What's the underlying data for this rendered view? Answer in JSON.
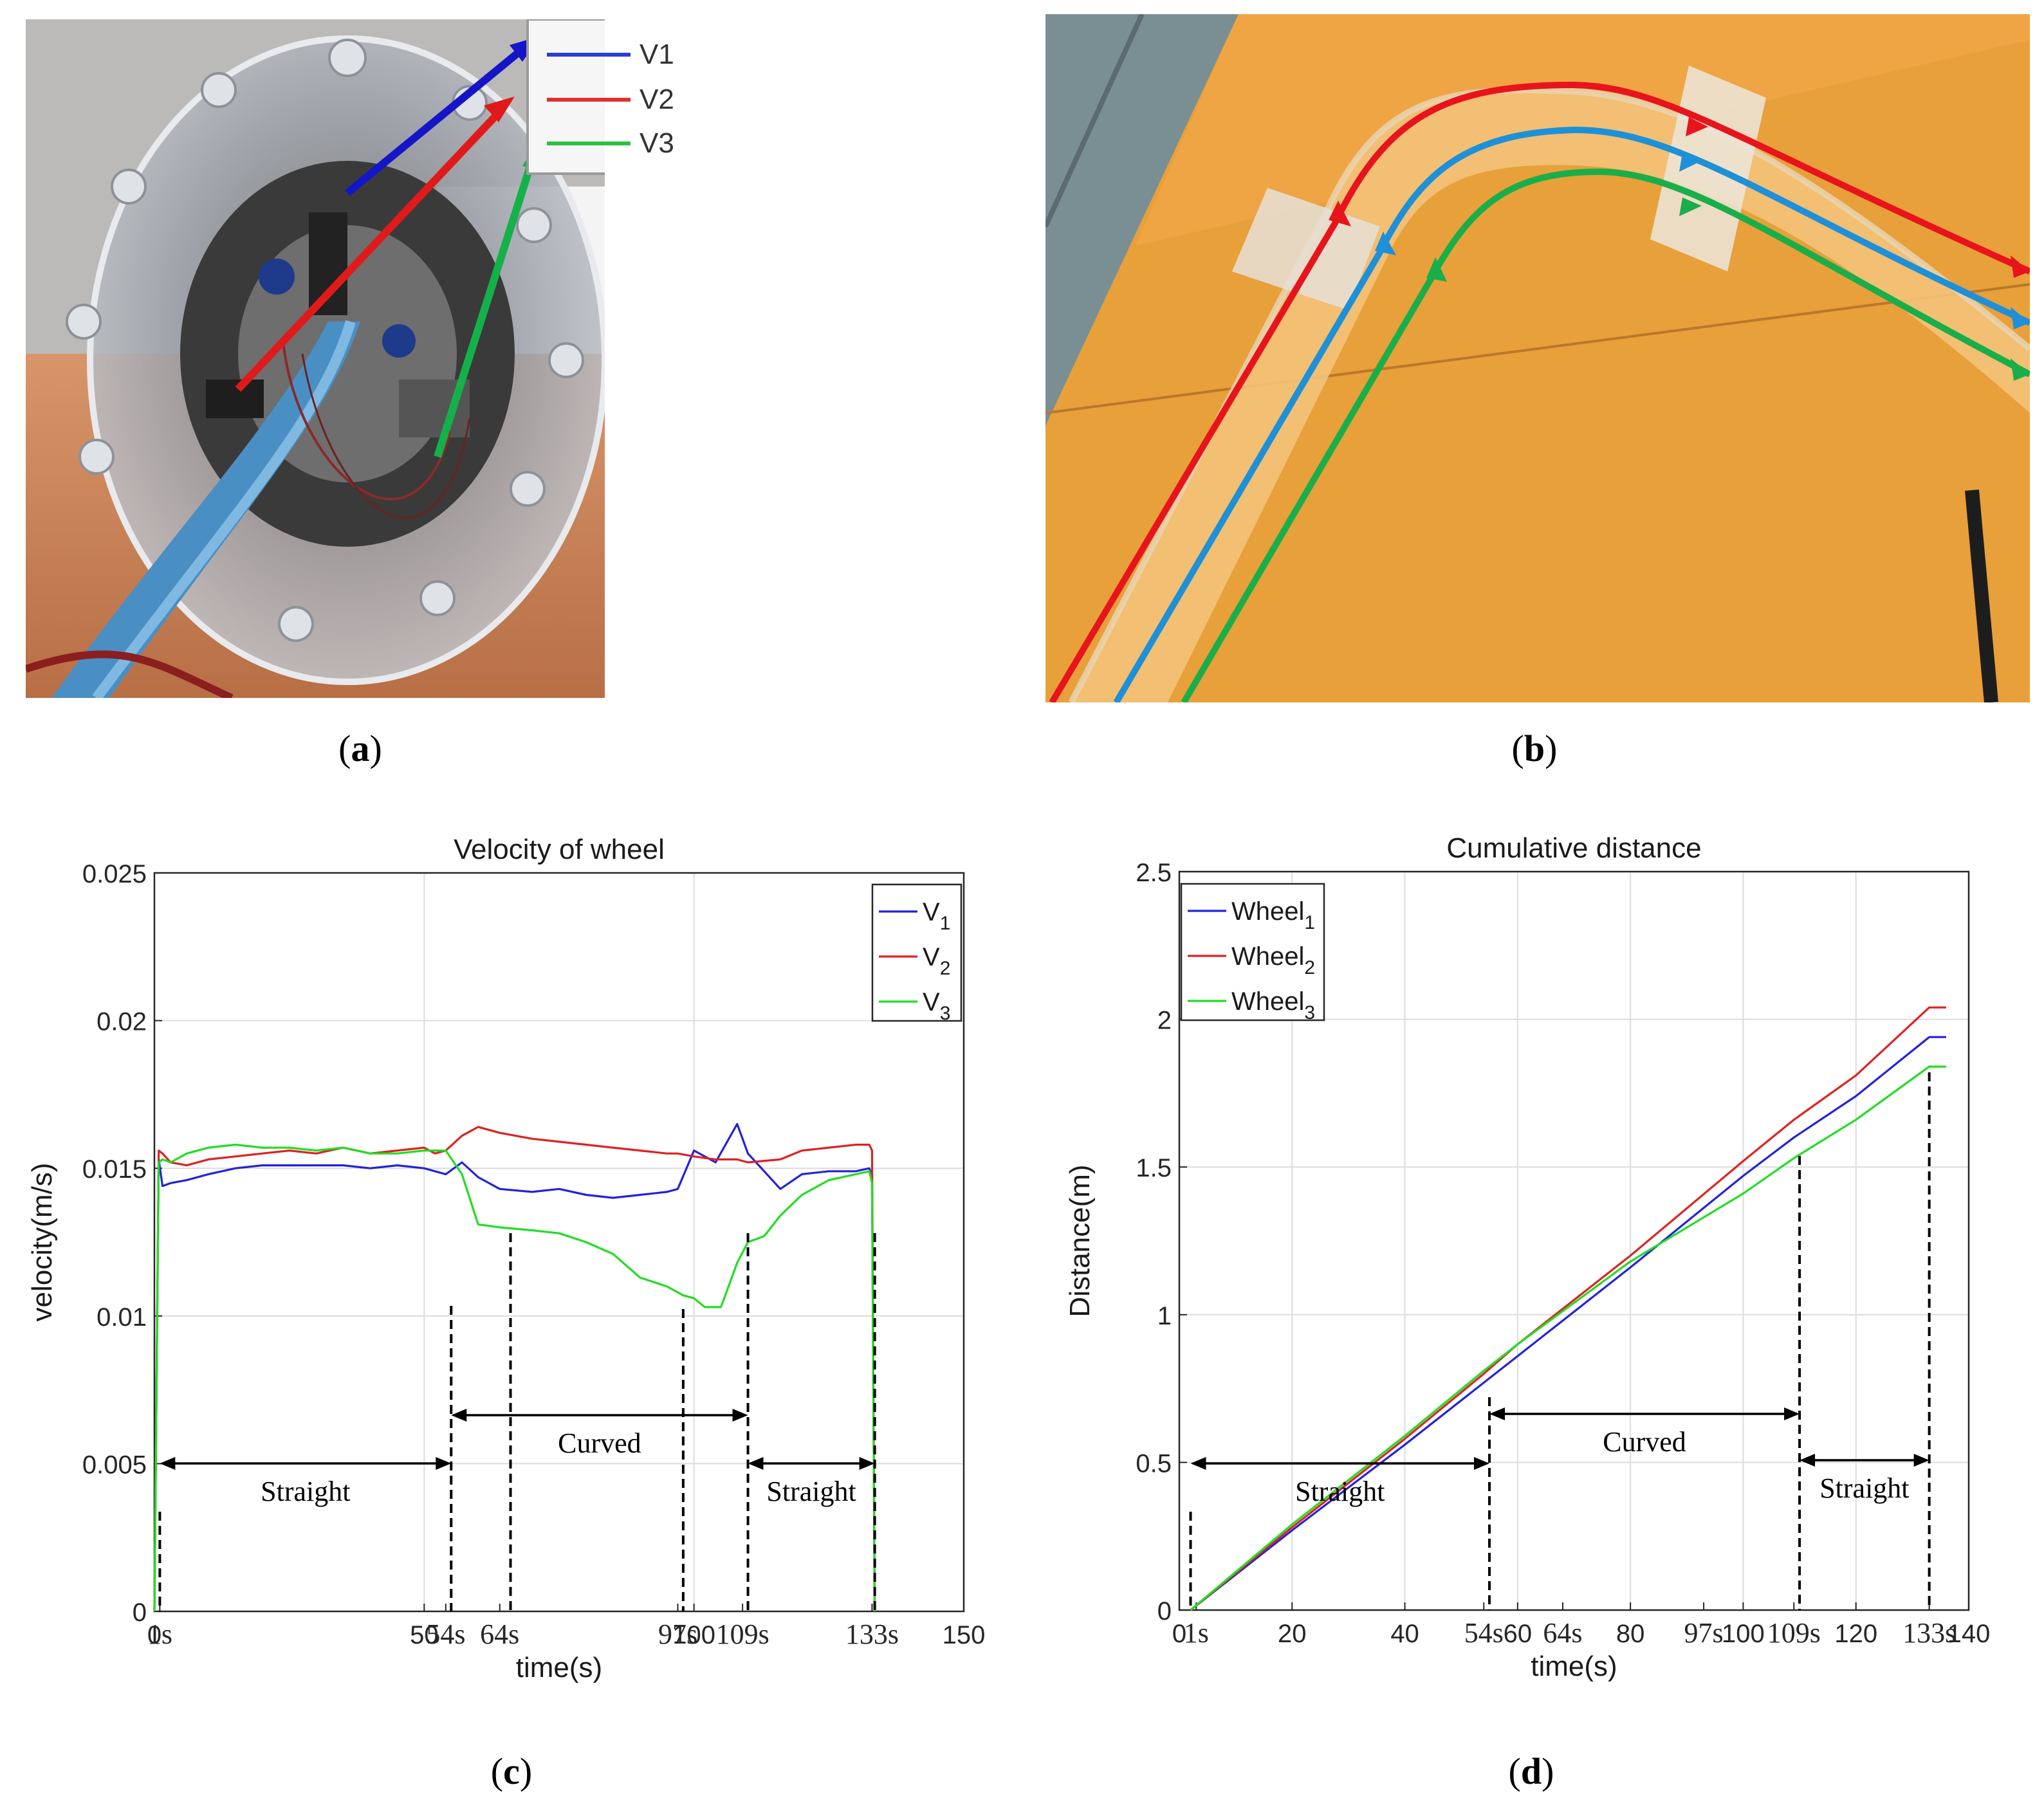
{
  "panels": {
    "a": {
      "caption_label": "a",
      "legend": [
        {
          "label": "V1",
          "color": "#2a3fd6"
        },
        {
          "label": "V2",
          "color": "#e03030"
        },
        {
          "label": "V3",
          "color": "#2ac040"
        }
      ]
    },
    "b": {
      "caption_label": "b"
    },
    "c": {
      "caption_label": "c"
    },
    "d": {
      "caption_label": "d"
    }
  },
  "chart_data": [
    {
      "type": "line",
      "title": "Velocity of wheel",
      "xlabel": "time(s)",
      "ylabel": "velocity(m/s)",
      "xlim": [
        0,
        150
      ],
      "ylim": [
        0,
        0.025
      ],
      "grid": true,
      "legend_position": "top-right",
      "yticks": [
        "0",
        "0.005",
        "0.01",
        "0.015",
        "0.02",
        "0.025"
      ],
      "xtick_labels": [
        {
          "x": 0,
          "label": "0"
        },
        {
          "x": 1,
          "label": "1s"
        },
        {
          "x": 50,
          "label": "50"
        },
        {
          "x": 54,
          "label": "54s"
        },
        {
          "x": 64,
          "label": "64s"
        },
        {
          "x": 97,
          "label": "97s"
        },
        {
          "x": 100,
          "label": "100"
        },
        {
          "x": 109,
          "label": "109s"
        },
        {
          "x": 133,
          "label": "133s"
        },
        {
          "x": 150,
          "label": "150"
        }
      ],
      "series": [
        {
          "name": "V",
          "subscript": "1",
          "color": "#2222dd",
          "x": [
            0,
            0.8,
            1.5,
            3,
            6,
            10,
            15,
            20,
            25,
            30,
            35,
            40,
            45,
            50,
            52,
            54,
            57,
            60,
            64,
            70,
            75,
            80,
            85,
            90,
            95,
            97,
            100,
            104,
            108,
            110,
            116,
            120,
            125,
            130,
            132.5,
            133,
            133.5
          ],
          "y": [
            0,
            0.0153,
            0.0144,
            0.0145,
            0.0146,
            0.0148,
            0.015,
            0.0151,
            0.0151,
            0.0151,
            0.0151,
            0.015,
            0.0151,
            0.015,
            0.0149,
            0.0148,
            0.0152,
            0.0147,
            0.0143,
            0.0142,
            0.0143,
            0.0141,
            0.014,
            0.0141,
            0.0142,
            0.0143,
            0.0156,
            0.0152,
            0.0165,
            0.0155,
            0.0143,
            0.0148,
            0.0149,
            0.0149,
            0.015,
            0.0147,
            0
          ]
        },
        {
          "name": "V",
          "subscript": "2",
          "color": "#dd2222",
          "x": [
            0,
            0.8,
            1.5,
            3,
            6,
            10,
            15,
            20,
            25,
            30,
            35,
            40,
            45,
            50,
            52,
            54,
            57,
            60,
            64,
            70,
            75,
            80,
            85,
            90,
            95,
            97,
            100,
            104,
            108,
            110,
            116,
            120,
            125,
            130,
            132.5,
            133,
            133.5
          ],
          "y": [
            0,
            0.0156,
            0.0155,
            0.0152,
            0.0151,
            0.0153,
            0.0154,
            0.0155,
            0.0156,
            0.0155,
            0.0157,
            0.0155,
            0.0156,
            0.0157,
            0.0155,
            0.0156,
            0.0161,
            0.0164,
            0.0162,
            0.016,
            0.0159,
            0.0158,
            0.0157,
            0.0156,
            0.0155,
            0.0155,
            0.0154,
            0.0153,
            0.0153,
            0.0152,
            0.0153,
            0.0156,
            0.0157,
            0.0158,
            0.0158,
            0.0156,
            0
          ]
        },
        {
          "name": "V",
          "subscript": "3",
          "color": "#22dd22",
          "x": [
            0,
            0.8,
            1.5,
            3,
            6,
            10,
            15,
            20,
            25,
            30,
            35,
            40,
            45,
            50,
            54,
            57,
            60,
            64,
            70,
            75,
            80,
            85,
            90,
            95,
            98,
            100,
            102,
            105,
            108,
            110,
            113,
            116,
            120,
            125,
            130,
            132.5,
            133,
            133.5
          ],
          "y": [
            0,
            0.0152,
            0.0153,
            0.0152,
            0.0155,
            0.0157,
            0.0158,
            0.0157,
            0.0157,
            0.0156,
            0.0157,
            0.0155,
            0.0155,
            0.0156,
            0.0156,
            0.0148,
            0.0131,
            0.013,
            0.0129,
            0.0128,
            0.0125,
            0.0121,
            0.0113,
            0.011,
            0.0107,
            0.0106,
            0.0103,
            0.0103,
            0.0118,
            0.0125,
            0.0127,
            0.0134,
            0.0141,
            0.0146,
            0.0148,
            0.0149,
            0.0145,
            0
          ]
        }
      ],
      "annotations": {
        "dashed_x": [
          1,
          55,
          66,
          98,
          110,
          133.5
        ],
        "segments": [
          {
            "label": "Straight",
            "from": 1,
            "to": 55
          },
          {
            "label": "Curved",
            "from": 55,
            "to": 110
          },
          {
            "label": "Straight",
            "from": 110,
            "to": 133.5
          }
        ]
      }
    },
    {
      "type": "line",
      "title": "Cumulative distance",
      "xlabel": "time(s)",
      "ylabel": "Distance(m)",
      "xlim": [
        0,
        140
      ],
      "ylim": [
        0,
        2.5
      ],
      "grid": true,
      "legend_position": "top-left",
      "yticks": [
        "0",
        "0.5",
        "1",
        "1.5",
        "2",
        "2.5"
      ],
      "xtick_labels": [
        {
          "x": 0,
          "label": "0"
        },
        {
          "x": 3,
          "label": "1s"
        },
        {
          "x": 20,
          "label": "20"
        },
        {
          "x": 40,
          "label": "40"
        },
        {
          "x": 54,
          "label": "54s"
        },
        {
          "x": 60,
          "label": "60"
        },
        {
          "x": 68,
          "label": "64s"
        },
        {
          "x": 80,
          "label": "80"
        },
        {
          "x": 93,
          "label": "97s"
        },
        {
          "x": 100,
          "label": "100"
        },
        {
          "x": 109,
          "label": "109s"
        },
        {
          "x": 120,
          "label": "120"
        },
        {
          "x": 133,
          "label": "133s"
        },
        {
          "x": 140,
          "label": "140"
        }
      ],
      "series": [
        {
          "name": "Wheel",
          "subscript": "1",
          "color": "#2222dd",
          "x": [
            2,
            20,
            40,
            54,
            60,
            80,
            100,
            109,
            120,
            133,
            136
          ],
          "y": [
            0,
            0.27,
            0.56,
            0.77,
            0.86,
            1.16,
            1.47,
            1.6,
            1.74,
            1.94,
            1.94
          ]
        },
        {
          "name": "Wheel",
          "subscript": "2",
          "color": "#dd2222",
          "x": [
            2,
            20,
            40,
            54,
            60,
            80,
            100,
            109,
            120,
            133,
            136
          ],
          "y": [
            0,
            0.28,
            0.58,
            0.8,
            0.9,
            1.2,
            1.52,
            1.66,
            1.81,
            2.04,
            2.04
          ]
        },
        {
          "name": "Wheel",
          "subscript": "3",
          "color": "#22dd22",
          "x": [
            2,
            20,
            40,
            54,
            60,
            80,
            100,
            109,
            120,
            133,
            136
          ],
          "y": [
            0,
            0.29,
            0.59,
            0.81,
            0.9,
            1.18,
            1.41,
            1.53,
            1.66,
            1.84,
            1.84
          ]
        }
      ],
      "annotations": {
        "dashed_x": [
          2,
          55,
          110,
          133
        ],
        "segments": [
          {
            "label": "Straight",
            "from": 2,
            "to": 55
          },
          {
            "label": "Curved",
            "from": 55,
            "to": 110
          },
          {
            "label": "Straight",
            "from": 110,
            "to": 133
          }
        ]
      }
    }
  ]
}
